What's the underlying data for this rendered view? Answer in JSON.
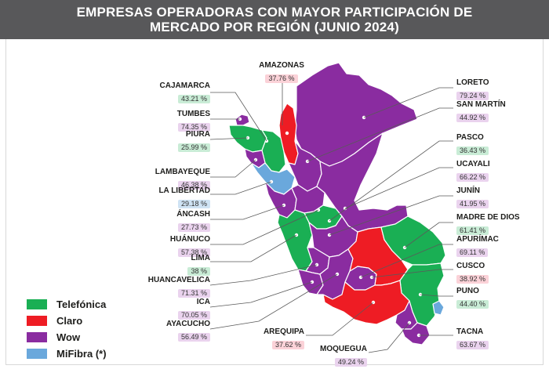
{
  "title_line1": "EMPRESAS OPERADORAS CON MAYOR PARTICIPACIÓN DE",
  "title_line2": "MERCADO POR REGIÓN (JUNIO 2024)",
  "colors": {
    "telefonica": "#1aaf54",
    "claro": "#ee1c24",
    "wow": "#8a2ca0",
    "mifibra": "#6aa8dc"
  },
  "legend": [
    {
      "label": "Telefónica",
      "color": "#1aaf54"
    },
    {
      "label": "Claro",
      "color": "#ee1c24"
    },
    {
      "label": "Wow",
      "color": "#8a2ca0"
    },
    {
      "label": "MiFibra (*)",
      "color": "#6aa8dc"
    }
  ],
  "regions": [
    {
      "name": "AMAZONAS",
      "pct": "37.76 %",
      "operator": "claro"
    },
    {
      "name": "CAJAMARCA",
      "pct": "43.21 %",
      "operator": "telefonica"
    },
    {
      "name": "TUMBES",
      "pct": "74.35 %",
      "operator": "wow"
    },
    {
      "name": "PIURA",
      "pct": "25.99 %",
      "operator": "telefonica"
    },
    {
      "name": "LAMBAYEQUE",
      "pct": "46.38 %",
      "operator": "wow"
    },
    {
      "name": "LA LIBERTAD",
      "pct": "29.18 %",
      "operator": "mifibra"
    },
    {
      "name": "ÁNCASH",
      "pct": "27.73 %",
      "operator": "wow"
    },
    {
      "name": "HUÁNUCO",
      "pct": "57.38 %",
      "operator": "wow"
    },
    {
      "name": "LIMA",
      "pct": "38 %",
      "operator": "telefonica"
    },
    {
      "name": "HUANCAVELICA",
      "pct": "71.31 %",
      "operator": "wow"
    },
    {
      "name": "ICA",
      "pct": "70.05 %",
      "operator": "wow"
    },
    {
      "name": "AYACUCHO",
      "pct": "56.49 %",
      "operator": "wow"
    },
    {
      "name": "AREQUIPA",
      "pct": "37.62 %",
      "operator": "claro"
    },
    {
      "name": "MOQUEGUA",
      "pct": "49.24 %",
      "operator": "wow"
    },
    {
      "name": "LORETO",
      "pct": "79.24 %",
      "operator": "wow"
    },
    {
      "name": "SAN MARTÍN",
      "pct": "44.92 %",
      "operator": "wow"
    },
    {
      "name": "PASCO",
      "pct": "36.43 %",
      "operator": "telefonica"
    },
    {
      "name": "UCAYALI",
      "pct": "66.22 %",
      "operator": "wow"
    },
    {
      "name": "JUNÍN",
      "pct": "41.95 %",
      "operator": "wow"
    },
    {
      "name": "MADRE DE DIOS",
      "pct": "61.41 %",
      "operator": "telefonica"
    },
    {
      "name": "APURÍMAC",
      "pct": "69.11 %",
      "operator": "wow"
    },
    {
      "name": "CUSCO",
      "pct": "38.92 %",
      "operator": "claro"
    },
    {
      "name": "PUNO",
      "pct": "44.40 %",
      "operator": "telefonica"
    },
    {
      "name": "TACNA",
      "pct": "63.67 %",
      "operator": "wow"
    }
  ]
}
